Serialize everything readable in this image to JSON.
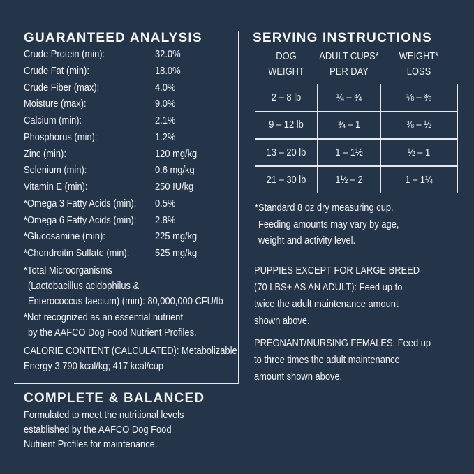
{
  "guaranteed_analysis": {
    "title": "GUARANTEED ANALYSIS",
    "rows": [
      [
        "Crude Protein (min):",
        "32.0%"
      ],
      [
        "Crude Fat (min):",
        "18.0%"
      ],
      [
        "Crude Fiber (max):",
        "4.0%"
      ],
      [
        "Moisture (max):",
        "9.0%"
      ],
      [
        "Calcium (min):",
        "2.1%"
      ],
      [
        "Phosphorus (min):",
        "1.2%"
      ],
      [
        "Zinc (min):",
        "120 mg/kg"
      ],
      [
        "Selenium (min):",
        "0.6 mg/kg"
      ],
      [
        "Vitamin E (min):",
        "250 IU/kg"
      ],
      [
        "*Omega 3 Fatty Acids (min):",
        "0.5%"
      ],
      [
        "*Omega 6 Fatty Acids (min):",
        "2.8%"
      ],
      [
        "*Glucosamine (min):",
        "225 mg/kg"
      ],
      [
        "*Chondroitin Sulfate (min):",
        "525 mg/kg"
      ]
    ],
    "microorganisms": [
      "*Total Microorganisms",
      "(Lactobacillus acidophilus &",
      "Enterococcus faecium) (min): 80,000,000 CFU/lb"
    ],
    "note": [
      "*Not recognized as an essential nutrient",
      "by the AAFCO Dog Food Nutrient Profiles."
    ],
    "calorie": [
      "CALORIE CONTENT (CALCULATED): Metabolizable",
      "Energy 3,790 kcal/kg; 417 kcal/cup"
    ]
  },
  "complete_balanced": {
    "title": "COMPLETE & BALANCED",
    "lines": [
      "Formulated to meet the nutritional levels",
      "established by the AAFCO Dog Food",
      "Nutrient Profiles for maintenance."
    ]
  },
  "serving_instructions": {
    "title": "SERVING INSTRUCTIONS",
    "headers": [
      [
        "DOG",
        "WEIGHT"
      ],
      [
        "ADULT CUPS*",
        "PER DAY"
      ],
      [
        "WEIGHT*",
        "LOSS"
      ]
    ],
    "rows": [
      [
        "2 – 8 lb",
        "¼ – ¾",
        "⅛ – ⅜"
      ],
      [
        "9 – 12 lb",
        "¾ – 1",
        "⅜ – ½"
      ],
      [
        "13 – 20 lb",
        "1 – 1½",
        "½ – 1"
      ],
      [
        "21 – 30 lb",
        "1½ – 2",
        "1 – 1¼"
      ]
    ],
    "footnote": [
      "*Standard 8 oz dry measuring cup.",
      "Feeding amounts may vary by age,",
      "weight and activity level."
    ],
    "puppies": [
      "PUPPIES EXCEPT FOR LARGE BREED",
      "(70 LBS+ AS AN ADULT): Feed up to",
      "twice the adult maintenance amount",
      "shown above."
    ],
    "pregnant": [
      "PREGNANT/NURSING FEMALES: Feed up",
      "to three times the adult maintenance",
      "amount shown above."
    ]
  }
}
